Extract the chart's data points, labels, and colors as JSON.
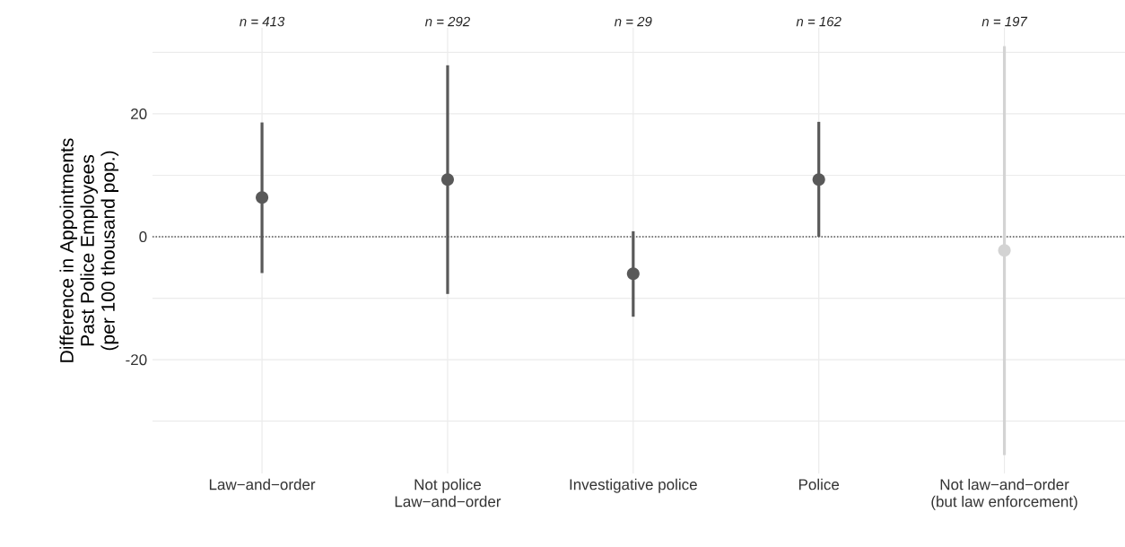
{
  "chart_data": {
    "type": "scatter",
    "ylabel": "Difference in Appointments\nPast Police Employees\n(per 100 thousand pop.)",
    "categories": [
      "Law−and−order",
      "Not police\nLaw−and−order",
      "Investigative police",
      "Police",
      "Not law−and−order\n(but law enforcement)"
    ],
    "values": [
      6.4,
      9.3,
      -6.0,
      9.3,
      -2.2
    ],
    "colors": [
      "#595959",
      "#595959",
      "#595959",
      "#595959",
      "#d3d3d3"
    ],
    "errors": [
      [
        -5.9,
        18.6
      ],
      [
        -9.3,
        27.9
      ],
      [
        -13.0,
        0.9
      ],
      [
        0.0,
        18.7
      ],
      [
        -35.5,
        31.0
      ]
    ],
    "annotations": [
      "n =  413",
      "n =  292",
      "n =  29",
      "n =  162",
      "n =  197"
    ],
    "ylim": [
      -38.5,
      34
    ],
    "yticks": [
      {
        "value": -30,
        "label": null
      },
      -20,
      {
        "value": -10,
        "label": null
      },
      0,
      {
        "value": 10,
        "label": null
      },
      20,
      {
        "value": 30,
        "label": null
      }
    ],
    "ref_lines": [
      {
        "axis": "y",
        "value": 0,
        "color": "#555555",
        "line_style": "dotted"
      }
    ],
    "grid": true,
    "marker": "circle"
  }
}
